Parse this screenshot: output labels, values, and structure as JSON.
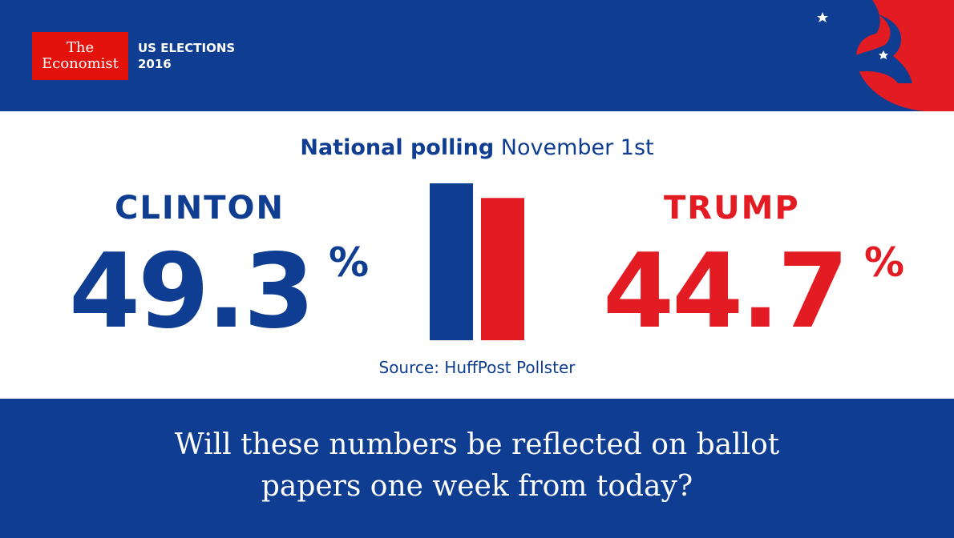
{
  "branding": {
    "logo_line1": "The",
    "logo_line2": "Economist",
    "series_line1": "US ELECTIONS",
    "series_line2": "2016"
  },
  "colors": {
    "blue": "#0f3d91",
    "red": "#e31b23",
    "logo_red": "#e3120b",
    "white": "#ffffff"
  },
  "icons": {
    "header_graphic": "democrat-donkey-icon"
  },
  "chart_data": {
    "type": "bar",
    "title_bold": "National polling",
    "title_rest": "November 1st",
    "source": "Source: HuffPost Pollster",
    "categories": [
      "CLINTON",
      "TRUMP"
    ],
    "values": [
      49.3,
      44.7
    ],
    "value_labels": [
      "49.3",
      "44.7"
    ],
    "unit": "%",
    "colors": [
      "#0f3d91",
      "#e31b23"
    ]
  },
  "footer": {
    "question_line1": "Will these numbers be reflected on ballot",
    "question_line2": "papers one week from today?"
  }
}
